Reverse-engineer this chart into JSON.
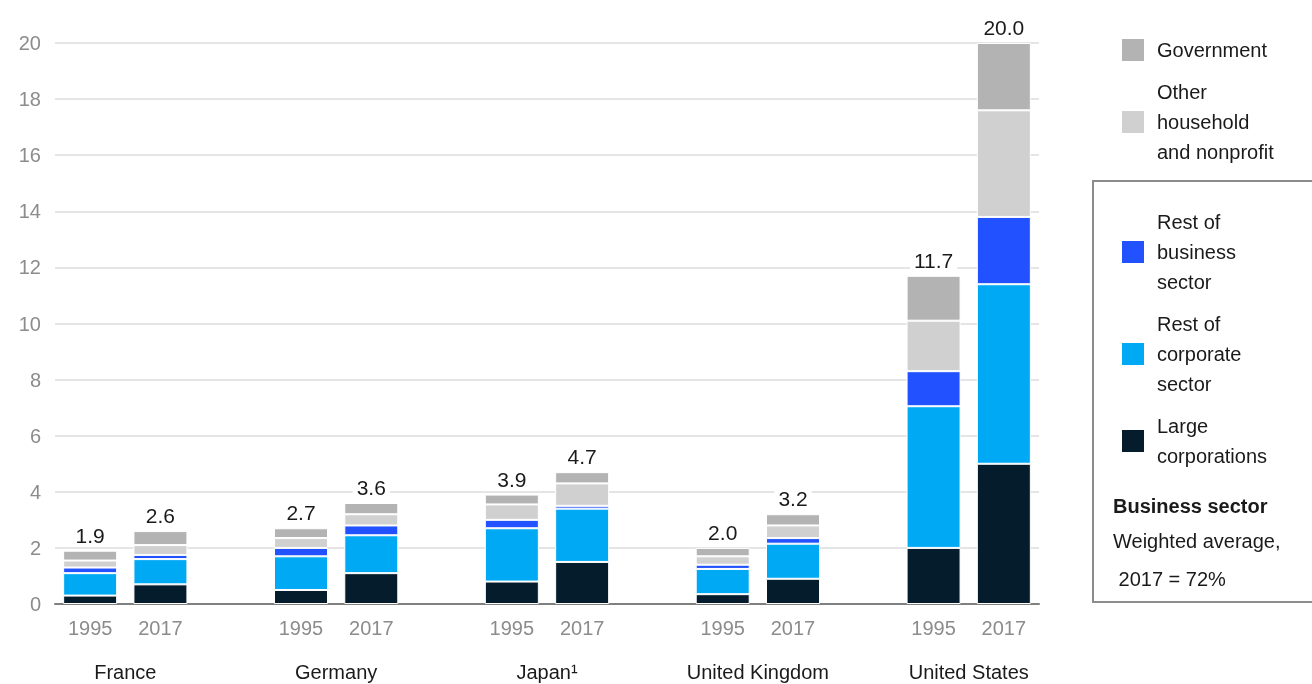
{
  "chart_data": {
    "type": "bar",
    "stacked": true,
    "categories": [
      "1995",
      "2017",
      "1995",
      "2017",
      "1995",
      "2017",
      "1995",
      "2017",
      "1995",
      "2017"
    ],
    "series": [
      {
        "name": "Large corporations",
        "color": "#051c2c",
        "values": [
          0.3,
          0.7,
          0.5,
          1.1,
          0.8,
          1.5,
          0.35,
          0.9,
          2.0,
          5.0
        ]
      },
      {
        "name": "Rest of corporate sector",
        "color": "#00a9f4",
        "values": [
          0.8,
          0.9,
          1.2,
          1.35,
          1.9,
          1.9,
          0.9,
          1.25,
          5.05,
          6.4
        ]
      },
      {
        "name": "Rest of business sector",
        "color": "#2251ff",
        "values": [
          0.2,
          0.15,
          0.3,
          0.35,
          0.3,
          0.1,
          0.15,
          0.2,
          1.25,
          2.4
        ]
      },
      {
        "name": "Other household and nonprofit",
        "color": "#d0d0d0",
        "values": [
          0.25,
          0.35,
          0.35,
          0.4,
          0.55,
          0.8,
          0.3,
          0.45,
          1.8,
          3.8
        ]
      },
      {
        "name": "Government",
        "color": "#b3b3b3",
        "values": [
          0.35,
          0.5,
          0.35,
          0.4,
          0.35,
          0.4,
          0.3,
          0.4,
          1.6,
          2.4
        ]
      }
    ],
    "totals": [
      "1.9",
      "2.6",
      "2.7",
      "3.6",
      "3.9",
      "4.7",
      "2.0",
      "3.2",
      "11.7",
      "20.0"
    ],
    "ylim": [
      0,
      20
    ],
    "yticks": [
      0,
      2,
      4,
      6,
      8,
      10,
      12,
      14,
      16,
      18,
      20
    ],
    "grid": "y",
    "legend": "right",
    "annotations": [
      "France",
      "Germany",
      "Japan¹",
      "United Kingdom",
      "United States",
      "Business sector",
      "Weighted average, 2017 = 72%"
    ]
  }
}
